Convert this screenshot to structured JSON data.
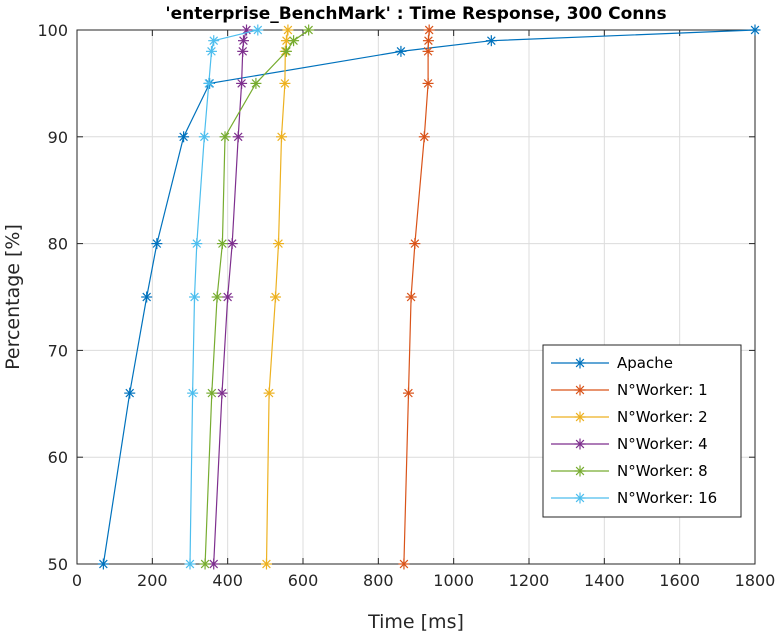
{
  "chart_data": {
    "type": "line",
    "title": "'enterprise_BenchMark' : Time Response, 300 Conns",
    "xlabel": "Time [ms]",
    "ylabel": "Percentage [%]",
    "xlim": [
      0,
      1800
    ],
    "ylim": [
      50,
      100
    ],
    "xticks": [
      "0",
      "200",
      "400",
      "600",
      "800",
      "1000",
      "1200",
      "1400",
      "1600",
      "1800"
    ],
    "yticks": [
      "50",
      "60",
      "70",
      "80",
      "90",
      "100"
    ],
    "grid": true,
    "legend_position": "bottom-right",
    "marker": "asterisk",
    "series": [
      {
        "name": "Apache",
        "color": "#0072BD",
        "x": [
          70,
          140,
          185,
          212,
          283,
          352,
          860,
          1100,
          1800
        ],
        "y": [
          50,
          66,
          75,
          80,
          90,
          95,
          98,
          99,
          100
        ]
      },
      {
        "name": "N°Worker: 1",
        "color": "#D95319",
        "x": [
          868,
          880,
          887,
          897,
          922,
          932,
          932,
          933,
          935
        ],
        "y": [
          50,
          66,
          75,
          80,
          90,
          95,
          98,
          99,
          100
        ]
      },
      {
        "name": "N°Worker: 2",
        "color": "#EDB120",
        "x": [
          503,
          510,
          527,
          535,
          543,
          552,
          553,
          556,
          560
        ],
        "y": [
          50,
          66,
          75,
          80,
          90,
          95,
          98,
          99,
          100
        ]
      },
      {
        "name": "N°Worker: 4",
        "color": "#7E2F8E",
        "x": [
          363,
          385,
          400,
          412,
          428,
          437,
          440,
          442,
          450
        ],
        "y": [
          50,
          66,
          75,
          80,
          90,
          95,
          98,
          99,
          100
        ]
      },
      {
        "name": "N°Worker: 8",
        "color": "#77AC30",
        "x": [
          340,
          358,
          372,
          386,
          393,
          475,
          556,
          575,
          615
        ],
        "y": [
          50,
          66,
          75,
          80,
          90,
          95,
          98,
          99,
          100
        ]
      },
      {
        "name": "N°Worker: 16",
        "color": "#4DBEEE",
        "x": [
          300,
          307,
          312,
          318,
          338,
          350,
          357,
          363,
          480
        ],
        "y": [
          50,
          66,
          75,
          80,
          90,
          95,
          98,
          99,
          100
        ]
      }
    ]
  }
}
